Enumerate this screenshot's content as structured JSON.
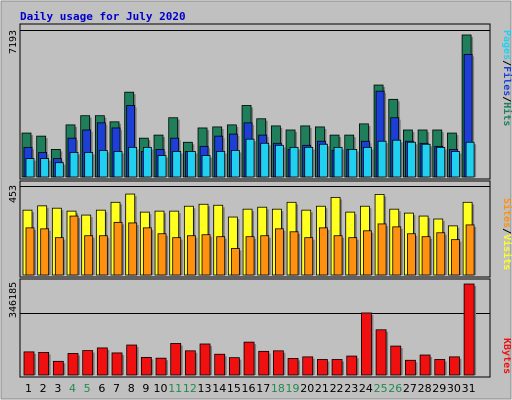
{
  "title": "Daily usage for July 2020",
  "colors": {
    "background": "#C0C0C0",
    "frame": "#ffffff",
    "title": "#0000CC",
    "hits": "#1E7F5A",
    "files": "#1E3FD6",
    "pages": "#20D0F0",
    "visits": "#FFFF20",
    "sites": "#FF9010",
    "kbytes": "#F01010",
    "weekend_label": "#218A4E",
    "weekday_label": "#000000"
  },
  "panels": {
    "top": {
      "max_label": "7193",
      "legend": [
        "Pages",
        "/",
        "Files",
        "/",
        "Hits"
      ],
      "legend_colors": [
        "#20D0F0",
        "#000000",
        "#1E3FD6",
        "#000000",
        "#1E7F5A"
      ]
    },
    "middle": {
      "max_label": "453",
      "legend": [
        "Sites",
        "/",
        "Visits"
      ],
      "legend_colors": [
        "#FF9010",
        "#000000",
        "#FFFF20"
      ]
    },
    "bottom": {
      "max_label": "346185",
      "legend": [
        "KBytes"
      ],
      "legend_colors": [
        "#F01010"
      ]
    }
  },
  "chart_data": {
    "type": "bar",
    "title": "Daily usage for July 2020",
    "x": [
      "1",
      "2",
      "3",
      "4",
      "5",
      "6",
      "7",
      "8",
      "9",
      "10",
      "11",
      "12",
      "13",
      "14",
      "15",
      "16",
      "17",
      "18",
      "19",
      "20",
      "21",
      "22",
      "23",
      "24",
      "25",
      "26",
      "27",
      "28",
      "29",
      "30",
      "31"
    ],
    "weekend_days": [
      "4",
      "5",
      "11",
      "12",
      "18",
      "19",
      "25",
      "26"
    ],
    "panels": [
      {
        "name": "top",
        "ymax": 7193,
        "series": [
          {
            "name": "Hits",
            "values": [
              2150,
              2000,
              1350,
              2550,
              3000,
              3000,
              2700,
              4150,
              1900,
              2050,
              2900,
              1700,
              2400,
              2450,
              2550,
              3500,
              2850,
              2500,
              2300,
              2500,
              2450,
              2050,
              2050,
              2600,
              4500,
              3800,
              2300,
              2300,
              2300,
              2150,
              6950
            ]
          },
          {
            "name": "Files",
            "values": [
              1450,
              1200,
              900,
              1900,
              2300,
              2650,
              2400,
              3500,
              1250,
              1350,
              1900,
              1250,
              1500,
              2000,
              2100,
              2650,
              2050,
              1650,
              1350,
              1550,
              1750,
              1300,
              1350,
              1750,
              4200,
              2900,
              1750,
              1650,
              1500,
              1350,
              6000
            ]
          },
          {
            "name": "Pages",
            "values": [
              900,
              900,
              700,
              1200,
              1200,
              1300,
              1250,
              1450,
              1450,
              1050,
              1250,
              1250,
              1050,
              1250,
              1300,
              1850,
              1650,
              1550,
              1450,
              1450,
              1600,
              1450,
              1350,
              1450,
              1750,
              1800,
              1700,
              1600,
              1450,
              1250,
              1700
            ]
          }
        ]
      },
      {
        "name": "middle",
        "ymax": 453,
        "series": [
          {
            "name": "Visits",
            "values": [
              330,
              352,
              340,
              325,
              305,
              330,
              370,
              412,
              320,
              325,
              325,
              350,
              360,
              355,
              295,
              335,
              345,
              335,
              370,
              330,
              350,
              395,
              320,
              350,
              410,
              335,
              315,
              300,
              285,
              250,
              370
            ]
          },
          {
            "name": "Sites",
            "values": [
              240,
              235,
              190,
              300,
              200,
              200,
              268,
              265,
              240,
              210,
              190,
              200,
              205,
              195,
              135,
              195,
              200,
              235,
              220,
              190,
              240,
              200,
              190,
              225,
              260,
              245,
              210,
              195,
              215,
              180,
              255
            ]
          }
        ]
      },
      {
        "name": "bottom",
        "ymax": 346185,
        "series": [
          {
            "name": "KBytes",
            "values": [
              88000,
              86000,
              52000,
              82000,
              93000,
              103000,
              84000,
              114000,
              67000,
              64000,
              120000,
              92000,
              118000,
              79000,
              66000,
              125000,
              90000,
              92000,
              63000,
              69000,
              59000,
              59000,
              72000,
              236000,
              172000,
              110000,
              56000,
              76000,
              59000,
              69000,
              346185
            ]
          }
        ]
      }
    ]
  }
}
